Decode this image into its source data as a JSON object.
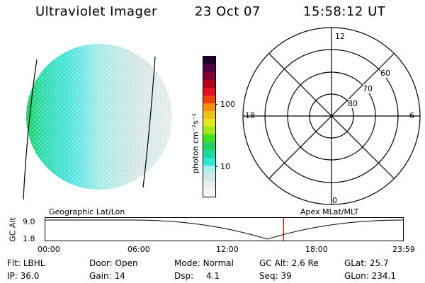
{
  "header": {
    "instrument": "Ultraviolet Imager",
    "date": "23 Oct 07",
    "time": "15:58:12 UT"
  },
  "colorbar": {
    "unit_label": "photon cm⁻²s⁻¹",
    "ticks": [
      "100",
      "10"
    ],
    "colors": [
      "#f4f4f4",
      "#e6eeee",
      "#cfe8e8",
      "#a8f0ee",
      "#30e8d8",
      "#20d8a0",
      "#20d060",
      "#40e020",
      "#a0e820",
      "#e0e820",
      "#f0c020",
      "#f09010",
      "#f04010",
      "#e01020",
      "#b00020",
      "#800030",
      "#500040",
      "#20002a"
    ]
  },
  "left_panel": {
    "label": "Geographic Lat/Lon",
    "dominant_colors": [
      "#a8f0ee",
      "#30e8d8",
      "#20d060",
      "#cfe8e8"
    ]
  },
  "polar_plot": {
    "label": "Apex MLat/MLT",
    "mlt_labels": {
      "top": "12",
      "left": "18",
      "right": "6",
      "bottom": "0"
    },
    "mlat_labels": [
      "60",
      "70",
      "80"
    ]
  },
  "altitude_plot": {
    "y_axis_label": "GC Alt",
    "y_ticks": [
      "9.0",
      "1.8"
    ],
    "x_ticks": [
      "00:00",
      "06:00",
      "12:00",
      "18:00",
      "23:59"
    ],
    "current_time_fraction": 0.6654,
    "marker_color": "#cc0000"
  },
  "info": {
    "row1": [
      {
        "key": "Flt:",
        "value": "LBHL"
      },
      {
        "key": "Door:",
        "value": "Open"
      },
      {
        "key": "Mode:",
        "value": "Normal"
      },
      {
        "key": "GC Alt:",
        "value": "2.6 Re"
      },
      {
        "key": "GLat:",
        "value": "25.7"
      }
    ],
    "row2": [
      {
        "key": "IP:",
        "value": "36.0"
      },
      {
        "key": "Gain:",
        "value": "14"
      },
      {
        "key": "Dsp:",
        "value": "4.1"
      },
      {
        "key": "Seq:",
        "value": "39"
      },
      {
        "key": "GLon:",
        "value": "234.1"
      }
    ]
  }
}
